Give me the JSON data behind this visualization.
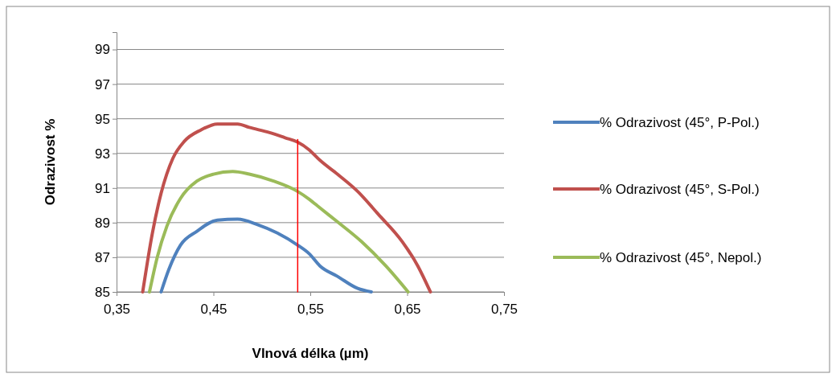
{
  "chart_data": {
    "type": "line",
    "xlabel": "Vlnová délka (µm)",
    "ylabel": "Odrazivost %",
    "xlim": [
      0.35,
      0.75
    ],
    "xticks": [
      {
        "value": 0.35,
        "label": "0,35"
      },
      {
        "value": 0.45,
        "label": "0,45"
      },
      {
        "value": 0.55,
        "label": "0,55"
      },
      {
        "value": 0.65,
        "label": "0,65"
      },
      {
        "value": 0.75,
        "label": "0,75"
      }
    ],
    "ylim": [
      85,
      100
    ],
    "yticks": [
      85,
      87,
      89,
      91,
      93,
      95,
      97,
      99
    ],
    "grid": "y",
    "legend": "right",
    "marker": "none",
    "line_style": "solid",
    "series": [
      {
        "name": "% Odrazivost (45°, P-Pol.)",
        "color": "#4f81bd",
        "x": [
          0.396,
          0.404,
          0.416,
          0.433,
          0.454,
          0.475,
          0.495,
          0.516,
          0.537,
          0.549,
          0.56,
          0.578,
          0.599,
          0.613
        ],
        "values": [
          85,
          86.3,
          87.7,
          88.5,
          89.15,
          89.2,
          88.9,
          88.4,
          87.7,
          87.2,
          86.5,
          85.9,
          85.2,
          85
        ]
      },
      {
        "name": "% Odrazivost (45°, S-Pol.)",
        "color": "#c0504d",
        "x": [
          0.377,
          0.387,
          0.396,
          0.408,
          0.42,
          0.437,
          0.454,
          0.475,
          0.487,
          0.508,
          0.524,
          0.537,
          0.549,
          0.56,
          0.578,
          0.599,
          0.62,
          0.645,
          0.661,
          0.674
        ],
        "values": [
          85,
          88.4,
          90.7,
          92.7,
          93.7,
          94.35,
          94.7,
          94.7,
          94.5,
          94.2,
          93.9,
          93.65,
          93.2,
          92.6,
          91.8,
          90.8,
          89.5,
          87.9,
          86.5,
          85
        ]
      },
      {
        "name": "% Odrazivost (45°, Nepol.)",
        "color": "#9bbb59",
        "x": [
          0.384,
          0.392,
          0.402,
          0.416,
          0.433,
          0.45,
          0.47,
          0.487,
          0.512,
          0.537,
          0.549,
          0.56,
          0.578,
          0.603,
          0.628,
          0.651
        ],
        "values": [
          85,
          87,
          88.8,
          90.4,
          91.4,
          91.8,
          91.95,
          91.8,
          91.4,
          90.8,
          90.35,
          89.85,
          89.05,
          87.9,
          86.5,
          85
        ]
      },
      {
        "color": "#ff0000",
        "x": [
          0.537,
          0.537
        ],
        "values": [
          85,
          93.8
        ]
      }
    ]
  }
}
